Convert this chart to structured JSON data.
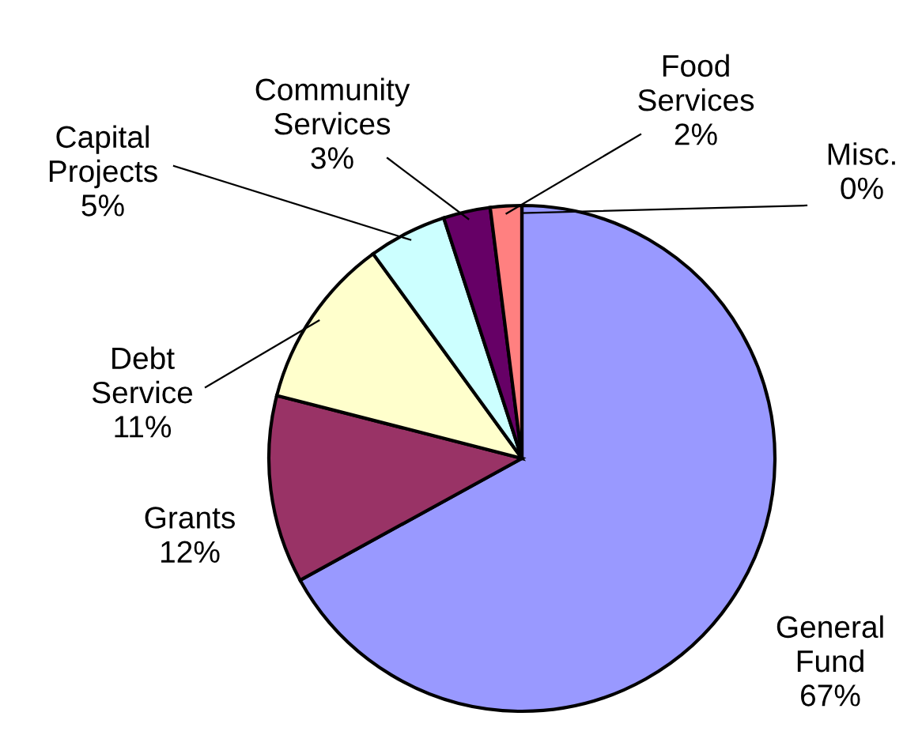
{
  "chart_data": {
    "type": "pie",
    "categories": [
      "General Fund",
      "Grants",
      "Debt Service",
      "Capital Projects",
      "Community Services",
      "Food Services",
      "Misc."
    ],
    "values": [
      67,
      12,
      11,
      5,
      3,
      2,
      0
    ],
    "value_labels": [
      "67%",
      "12%",
      "11%",
      "5%",
      "3%",
      "2%",
      "0%"
    ],
    "colors": [
      "#9999ff",
      "#993366",
      "#ffffcc",
      "#ccffff",
      "#660066",
      "#ff8080",
      "#0066cc"
    ]
  }
}
